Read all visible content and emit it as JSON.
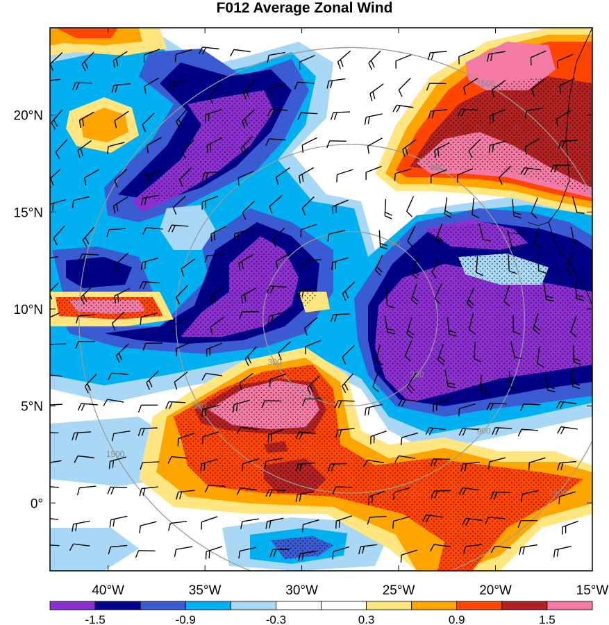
{
  "title": "F012 Average Zonal Wind",
  "map": {
    "lon_range": [
      -43,
      -15
    ],
    "lat_range": [
      -3.5,
      24.5
    ],
    "lon_ticks": [
      {
        "value": -40,
        "label": "40°W"
      },
      {
        "value": -35,
        "label": "35°W"
      },
      {
        "value": -30,
        "label": "30°W"
      },
      {
        "value": -25,
        "label": "25°W"
      },
      {
        "value": -20,
        "label": "20°W"
      },
      {
        "value": -15,
        "label": "15°W"
      }
    ],
    "lat_ticks": [
      {
        "value": 20,
        "label": "20°N"
      },
      {
        "value": 15,
        "label": "15°N"
      },
      {
        "value": 10,
        "label": "10°N"
      },
      {
        "value": 5,
        "label": "5°N"
      },
      {
        "value": 0,
        "label": "0°"
      }
    ],
    "range_ring_center": {
      "lon": -27.5,
      "lat": 9.5
    },
    "range_rings": [
      {
        "label": "300",
        "radius_deg": 4.5
      },
      {
        "label": "900",
        "radius_deg": 9
      },
      {
        "label": "1500",
        "radius_deg": 14
      }
    ]
  },
  "colorbar": {
    "colors": [
      "#8b2fd1",
      "#00008e",
      "#3a5bd1",
      "#00b0f0",
      "#a8d8f5",
      "#ffffff",
      "#ffffff",
      "#ffe680",
      "#ffa500",
      "#ff4500",
      "#b22222",
      "#f27aa5"
    ],
    "labels": [
      {
        "index": 1,
        "text": "-1.5"
      },
      {
        "index": 3,
        "text": "-0.9"
      },
      {
        "index": 5,
        "text": "-0.3"
      },
      {
        "index": 7,
        "text": "0.3"
      },
      {
        "index": 9,
        "text": "0.9"
      },
      {
        "index": 11,
        "text": "1.5"
      }
    ]
  },
  "colors": {
    "purple": "#8b2fd1",
    "navy": "#00008e",
    "blue": "#3a5bd1",
    "cyan": "#00b0f0",
    "lightblue": "#a8d8f5",
    "yellow": "#ffe680",
    "orange": "#ffa500",
    "redorange": "#ff4500",
    "darkred": "#b22222",
    "pink": "#f27aa5",
    "ring": "#9a9a9a"
  }
}
